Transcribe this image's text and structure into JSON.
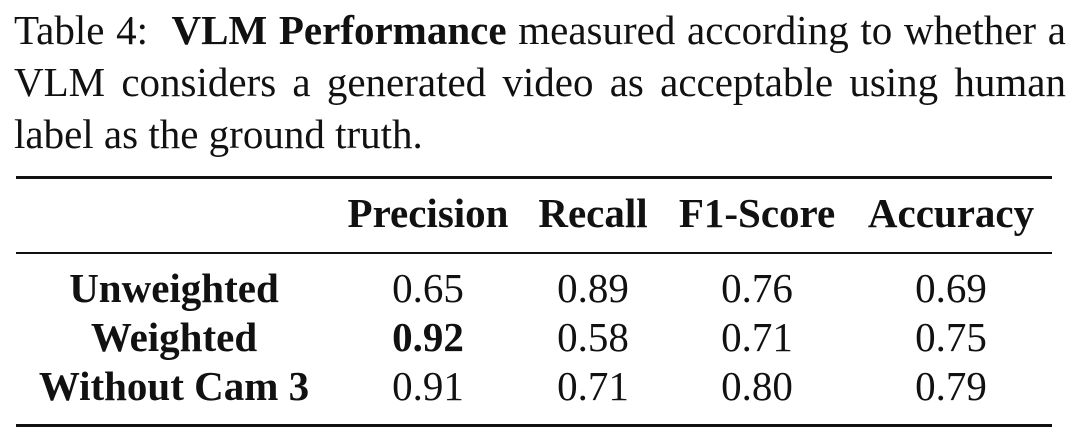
{
  "caption": {
    "prefix": "Table 4:",
    "bold_title": "VLM Performance",
    "line1_rest": " measured according to",
    "line2": "whether a VLM considers a generated video as acceptable",
    "line3": "using human label as the ground truth."
  },
  "table": {
    "columns": [
      "Precision",
      "Recall",
      "F1-Score",
      "Accuracy"
    ],
    "rows": [
      {
        "label": "Unweighted",
        "values": [
          "0.65",
          "0.89",
          "0.76",
          "0.69"
        ]
      },
      {
        "label": "Weighted",
        "values": [
          "0.92",
          "0.58",
          "0.71",
          "0.75"
        ]
      },
      {
        "label": "Without Cam 3",
        "values": [
          "0.91",
          "0.71",
          "0.80",
          "0.79"
        ]
      }
    ],
    "bold_cells": [
      {
        "row": 1,
        "col": 0
      }
    ]
  }
}
